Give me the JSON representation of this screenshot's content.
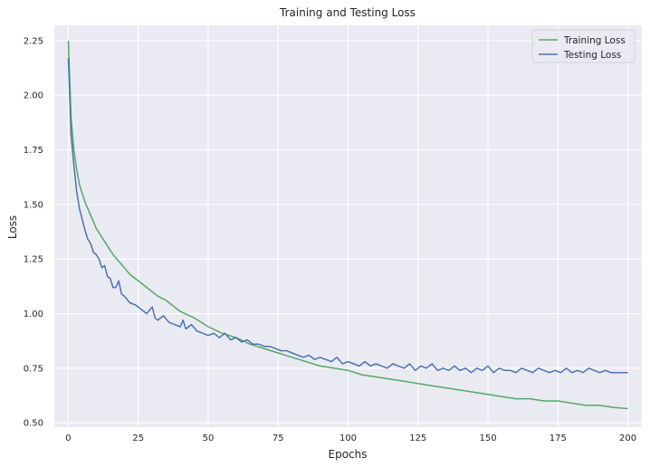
{
  "chart_data": {
    "type": "line",
    "title": "Training and Testing Loss",
    "xlabel": "Epochs",
    "ylabel": "Loss",
    "xlim": [
      -5,
      205
    ],
    "ylim": [
      0.48,
      2.32
    ],
    "xticks": [
      0,
      25,
      50,
      75,
      100,
      125,
      150,
      175,
      200
    ],
    "yticks": [
      0.5,
      0.75,
      1.0,
      1.25,
      1.5,
      1.75,
      2.0,
      2.25
    ],
    "grid": true,
    "legend_position": "top-right",
    "background": "#eaeaf2",
    "series": [
      {
        "name": "Training Loss",
        "color": "#55a868",
        "x": [
          0,
          1,
          2,
          3,
          4,
          5,
          6,
          7,
          8,
          9,
          10,
          12,
          14,
          16,
          18,
          20,
          22,
          24,
          26,
          28,
          30,
          32,
          35,
          38,
          40,
          45,
          50,
          55,
          60,
          65,
          70,
          75,
          80,
          85,
          90,
          95,
          100,
          105,
          110,
          115,
          120,
          125,
          130,
          135,
          140,
          145,
          150,
          155,
          160,
          165,
          170,
          175,
          180,
          185,
          190,
          195,
          200
        ],
        "y": [
          2.25,
          1.9,
          1.75,
          1.66,
          1.59,
          1.55,
          1.51,
          1.48,
          1.45,
          1.42,
          1.39,
          1.35,
          1.31,
          1.27,
          1.24,
          1.21,
          1.18,
          1.16,
          1.14,
          1.12,
          1.1,
          1.08,
          1.06,
          1.03,
          1.01,
          0.98,
          0.94,
          0.91,
          0.89,
          0.86,
          0.84,
          0.82,
          0.8,
          0.78,
          0.76,
          0.75,
          0.74,
          0.72,
          0.71,
          0.7,
          0.69,
          0.68,
          0.67,
          0.66,
          0.65,
          0.64,
          0.63,
          0.62,
          0.61,
          0.61,
          0.6,
          0.6,
          0.59,
          0.58,
          0.58,
          0.57,
          0.565
        ]
      },
      {
        "name": "Testing Loss",
        "color": "#4c72b0",
        "x": [
          0,
          1,
          2,
          3,
          4,
          5,
          6,
          7,
          8,
          9,
          10,
          11,
          12,
          13,
          14,
          15,
          16,
          17,
          18,
          19,
          20,
          22,
          24,
          26,
          28,
          30,
          31,
          32,
          34,
          36,
          38,
          40,
          41,
          42,
          44,
          46,
          48,
          50,
          52,
          54,
          56,
          58,
          60,
          62,
          64,
          66,
          68,
          70,
          72,
          74,
          76,
          78,
          80,
          82,
          84,
          86,
          88,
          90,
          92,
          94,
          96,
          98,
          100,
          102,
          104,
          106,
          108,
          110,
          112,
          114,
          116,
          118,
          120,
          122,
          124,
          126,
          128,
          130,
          132,
          134,
          136,
          138,
          140,
          142,
          144,
          146,
          148,
          150,
          152,
          154,
          156,
          158,
          160,
          162,
          164,
          166,
          168,
          170,
          172,
          174,
          176,
          178,
          180,
          182,
          184,
          186,
          188,
          190,
          192,
          194,
          196,
          198,
          200
        ],
        "y": [
          2.17,
          1.82,
          1.68,
          1.56,
          1.48,
          1.43,
          1.38,
          1.34,
          1.32,
          1.28,
          1.27,
          1.25,
          1.21,
          1.22,
          1.17,
          1.16,
          1.12,
          1.12,
          1.15,
          1.09,
          1.08,
          1.05,
          1.04,
          1.02,
          1.0,
          1.03,
          0.98,
          0.97,
          0.99,
          0.96,
          0.95,
          0.94,
          0.97,
          0.93,
          0.95,
          0.92,
          0.91,
          0.9,
          0.91,
          0.89,
          0.91,
          0.88,
          0.89,
          0.87,
          0.88,
          0.86,
          0.86,
          0.85,
          0.85,
          0.84,
          0.83,
          0.83,
          0.82,
          0.81,
          0.8,
          0.81,
          0.79,
          0.8,
          0.79,
          0.78,
          0.8,
          0.77,
          0.78,
          0.77,
          0.76,
          0.78,
          0.76,
          0.77,
          0.76,
          0.75,
          0.77,
          0.76,
          0.75,
          0.77,
          0.74,
          0.76,
          0.75,
          0.77,
          0.74,
          0.75,
          0.74,
          0.76,
          0.74,
          0.75,
          0.73,
          0.75,
          0.74,
          0.76,
          0.73,
          0.75,
          0.74,
          0.74,
          0.73,
          0.75,
          0.74,
          0.73,
          0.75,
          0.74,
          0.73,
          0.74,
          0.73,
          0.75,
          0.73,
          0.74,
          0.73,
          0.75,
          0.74,
          0.73,
          0.74,
          0.73,
          0.73,
          0.73,
          0.73
        ]
      }
    ]
  }
}
